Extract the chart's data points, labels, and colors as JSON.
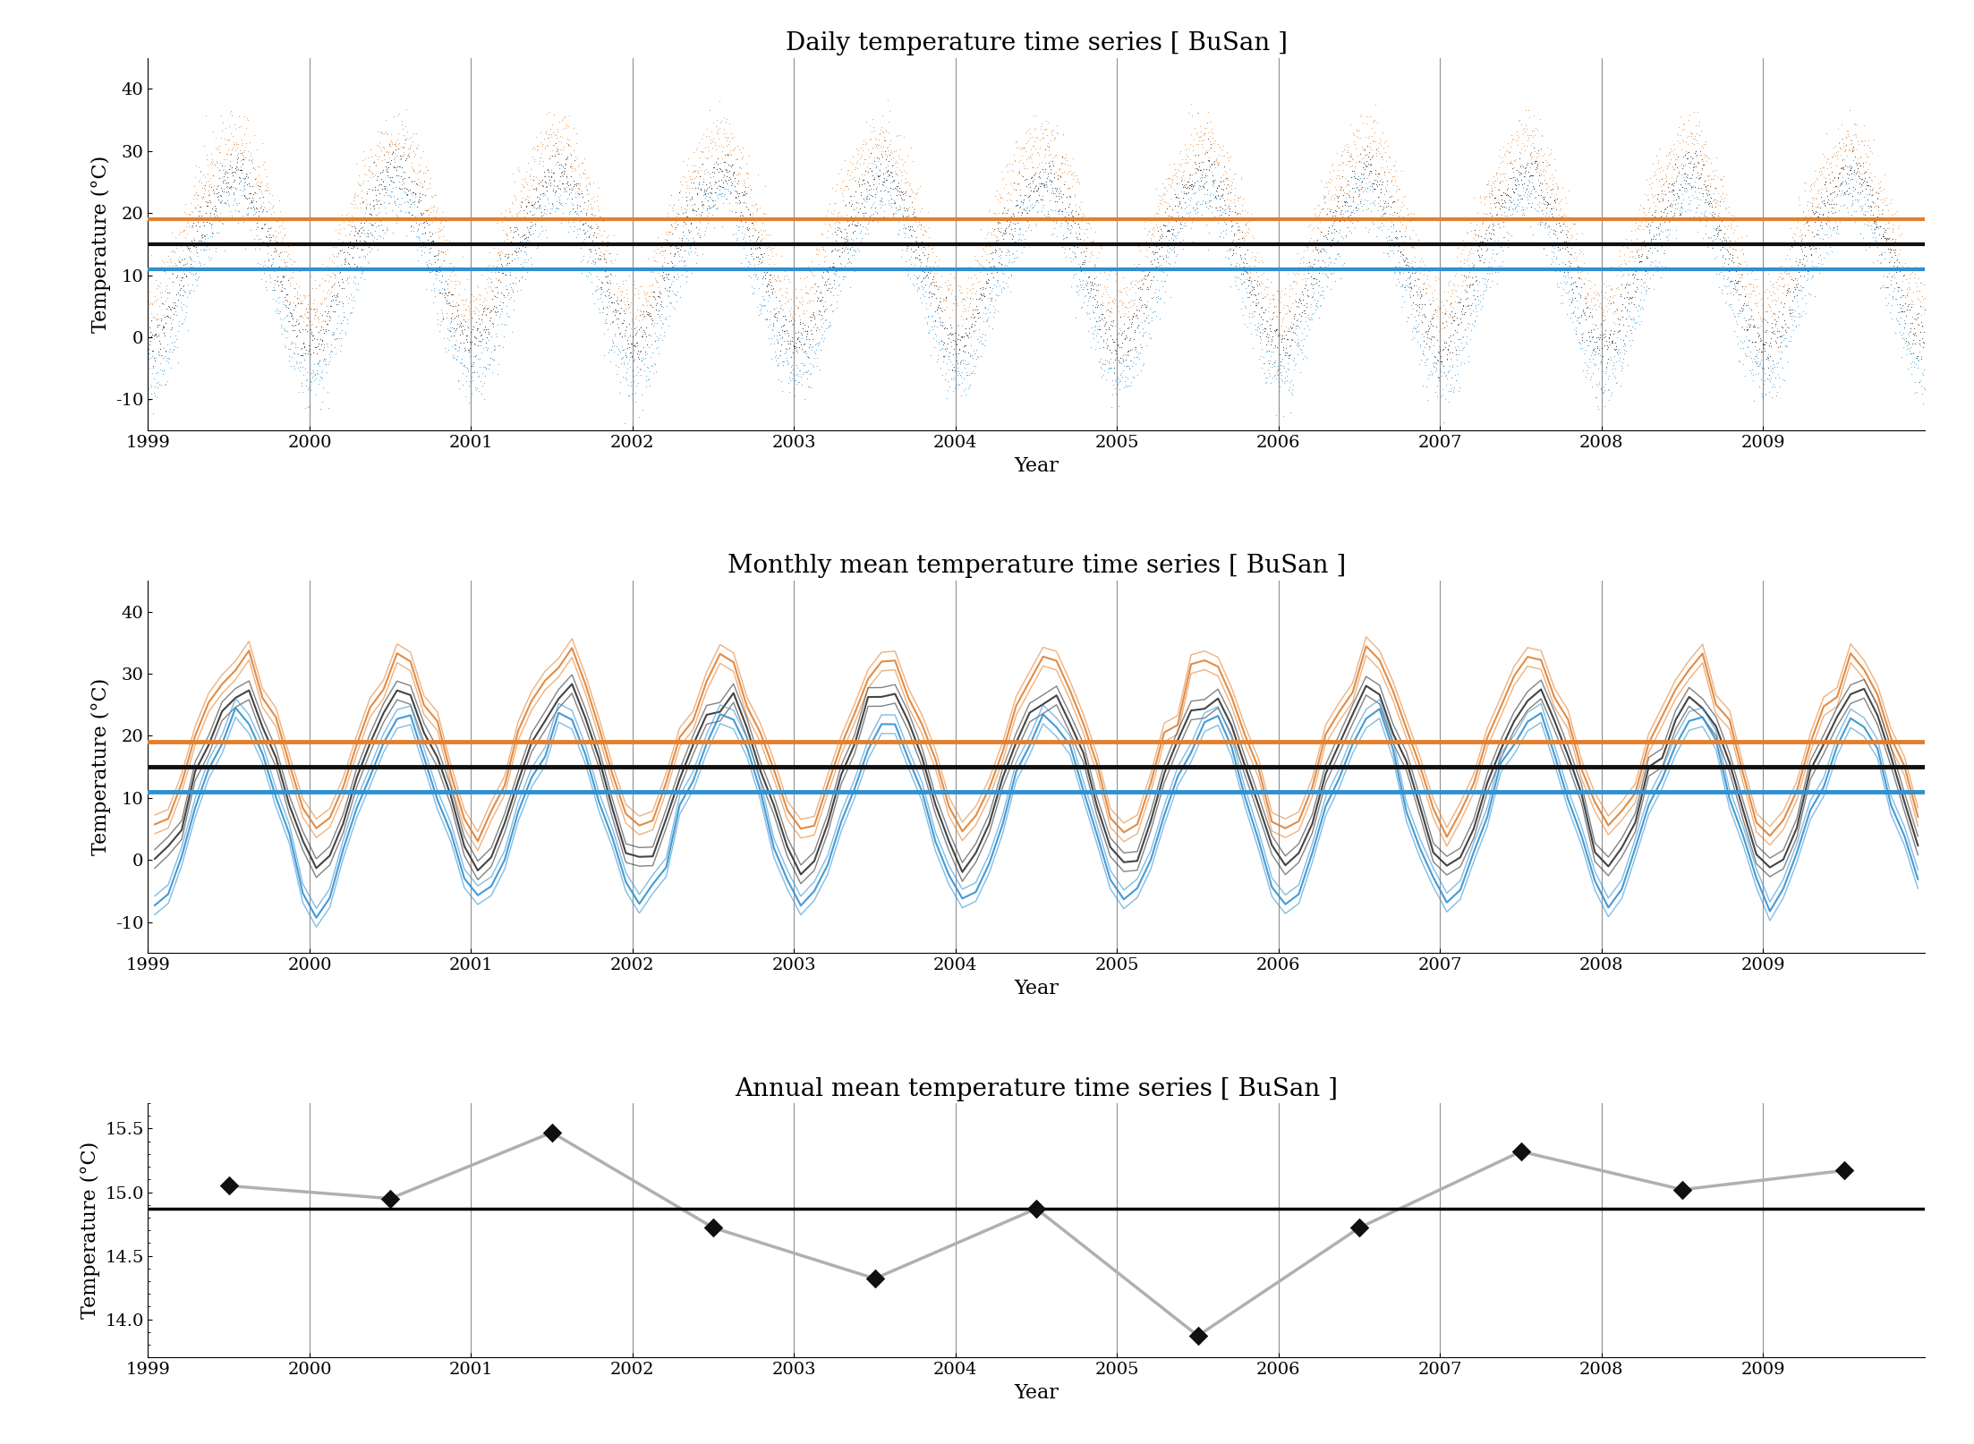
{
  "title1": "Daily temperature time series [ BuSan ]",
  "title2": "Monthly mean temperature time series [ BuSan ]",
  "title3": "Annual mean temperature time series [ BuSan ]",
  "xlabel": "Year",
  "ylabel": "Temperature (°C)",
  "daily_ylim": [
    -15,
    45
  ],
  "monthly_ylim": [
    -15,
    45
  ],
  "mean_daily_tmax": 19.0,
  "mean_daily_tmean": 15.0,
  "mean_daily_tmin": 11.0,
  "annual_mean": 14.87,
  "annual_values": [
    15.05,
    14.95,
    15.47,
    14.72,
    14.32,
    14.87,
    13.87,
    14.72,
    15.32,
    15.02,
    15.17
  ],
  "annual_years": [
    1999.5,
    2000.5,
    2001.5,
    2002.5,
    2003.5,
    2004.5,
    2005.5,
    2006.5,
    2007.5,
    2008.5,
    2009.5
  ],
  "color_max": "#E08030",
  "color_mean": "#101010",
  "color_min": "#3090D0",
  "color_annual_line": "#B0B0B0",
  "color_annual_marker": "#101010",
  "grid_color": "#909090",
  "title_fontsize": 20,
  "label_fontsize": 16,
  "tick_fontsize": 14,
  "monthly_mean_temps": [
    -1.5,
    1.0,
    6.5,
    13.5,
    18.5,
    22.5,
    26.0,
    27.0,
    22.0,
    16.0,
    9.0,
    2.0
  ],
  "monthly_max_temps": [
    4.5,
    7.0,
    12.5,
    19.5,
    24.5,
    28.5,
    31.5,
    32.0,
    27.0,
    22.0,
    14.5,
    7.5
  ],
  "monthly_min_temps": [
    -7.0,
    -5.0,
    0.5,
    7.5,
    13.0,
    18.0,
    22.5,
    23.0,
    17.5,
    10.5,
    3.5,
    -3.5
  ]
}
